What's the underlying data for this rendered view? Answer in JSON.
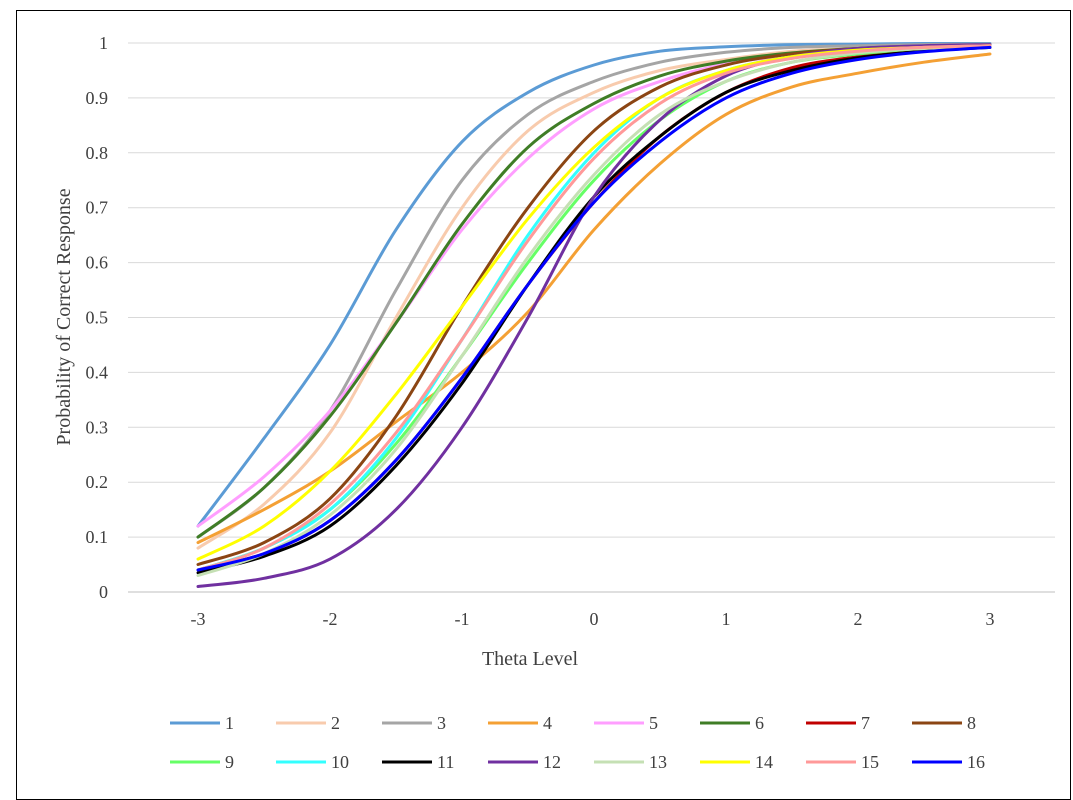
{
  "chart_data": {
    "type": "line",
    "title": "",
    "xlabel": "Theta Level",
    "ylabel": "Probability of Correct Response",
    "xlim": [
      -3,
      3
    ],
    "ylim": [
      0,
      1
    ],
    "x_ticks": [
      "-3",
      "-2",
      "-1",
      "0",
      "1",
      "2",
      "3"
    ],
    "y_ticks": [
      "0",
      "0.1",
      "0.2",
      "0.3",
      "0.4",
      "0.5",
      "0.6",
      "0.7",
      "0.8",
      "0.9",
      "1"
    ],
    "grid": true,
    "legend_position": "bottom",
    "x": [
      -3,
      -2.5,
      -2,
      -1.5,
      -1,
      -0.5,
      0,
      0.5,
      1,
      1.5,
      2,
      2.5,
      3
    ],
    "series": [
      {
        "name": "1",
        "color": "#5b9bd5",
        "values": [
          0.12,
          0.28,
          0.45,
          0.66,
          0.82,
          0.91,
          0.96,
          0.985,
          0.993,
          0.997,
          0.998,
          0.999,
          0.999
        ]
      },
      {
        "name": "2",
        "color": "#f8cbad",
        "values": [
          0.08,
          0.16,
          0.29,
          0.5,
          0.7,
          0.84,
          0.91,
          0.95,
          0.97,
          0.985,
          0.99,
          0.995,
          0.997
        ]
      },
      {
        "name": "3",
        "color": "#a5a5a5",
        "values": [
          0.1,
          0.19,
          0.33,
          0.55,
          0.75,
          0.87,
          0.93,
          0.965,
          0.983,
          0.992,
          0.995,
          0.997,
          0.998
        ]
      },
      {
        "name": "4",
        "color": "#f4a034",
        "values": [
          0.09,
          0.15,
          0.22,
          0.31,
          0.4,
          0.51,
          0.66,
          0.78,
          0.87,
          0.92,
          0.945,
          0.965,
          0.98
        ]
      },
      {
        "name": "5",
        "color": "#ff9eff",
        "values": [
          0.12,
          0.21,
          0.33,
          0.49,
          0.66,
          0.79,
          0.88,
          0.93,
          0.962,
          0.978,
          0.988,
          0.993,
          0.995
        ]
      },
      {
        "name": "6",
        "color": "#3f7d26",
        "values": [
          0.1,
          0.19,
          0.32,
          0.49,
          0.67,
          0.81,
          0.89,
          0.94,
          0.967,
          0.982,
          0.99,
          0.994,
          0.996
        ]
      },
      {
        "name": "7",
        "color": "#c00000",
        "values": [
          0.04,
          0.07,
          0.13,
          0.24,
          0.39,
          0.56,
          0.71,
          0.83,
          0.91,
          0.955,
          0.975,
          0.987,
          0.993
        ]
      },
      {
        "name": "8",
        "color": "#8b4513",
        "values": [
          0.05,
          0.09,
          0.17,
          0.32,
          0.52,
          0.7,
          0.84,
          0.92,
          0.96,
          0.98,
          0.99,
          0.994,
          0.996
        ]
      },
      {
        "name": "9",
        "color": "#66ff66",
        "values": [
          0.04,
          0.08,
          0.15,
          0.27,
          0.43,
          0.6,
          0.75,
          0.86,
          0.93,
          0.965,
          0.98,
          0.99,
          0.994
        ]
      },
      {
        "name": "10",
        "color": "#33ffff",
        "values": [
          0.04,
          0.08,
          0.15,
          0.28,
          0.46,
          0.65,
          0.8,
          0.9,
          0.95,
          0.975,
          0.988,
          0.993,
          0.995
        ]
      },
      {
        "name": "11",
        "color": "#000000",
        "values": [
          0.035,
          0.065,
          0.12,
          0.23,
          0.38,
          0.56,
          0.72,
          0.83,
          0.91,
          0.95,
          0.973,
          0.985,
          0.992
        ]
      },
      {
        "name": "12",
        "color": "#7030a0",
        "values": [
          0.01,
          0.025,
          0.06,
          0.15,
          0.3,
          0.5,
          0.72,
          0.86,
          0.94,
          0.975,
          0.99,
          0.995,
          0.997
        ]
      },
      {
        "name": "13",
        "color": "#c5e0b4",
        "values": [
          0.03,
          0.07,
          0.14,
          0.26,
          0.43,
          0.61,
          0.76,
          0.87,
          0.93,
          0.965,
          0.982,
          0.99,
          0.994
        ]
      },
      {
        "name": "14",
        "color": "#ffff00",
        "values": [
          0.06,
          0.12,
          0.22,
          0.36,
          0.52,
          0.68,
          0.81,
          0.9,
          0.95,
          0.975,
          0.987,
          0.992,
          0.995
        ]
      },
      {
        "name": "15",
        "color": "#ff9999",
        "values": [
          0.04,
          0.08,
          0.16,
          0.29,
          0.46,
          0.64,
          0.79,
          0.89,
          0.945,
          0.972,
          0.985,
          0.992,
          0.995
        ]
      },
      {
        "name": "16",
        "color": "#0000ff",
        "values": [
          0.04,
          0.07,
          0.13,
          0.24,
          0.39,
          0.56,
          0.71,
          0.82,
          0.9,
          0.945,
          0.97,
          0.984,
          0.992
        ]
      }
    ]
  }
}
